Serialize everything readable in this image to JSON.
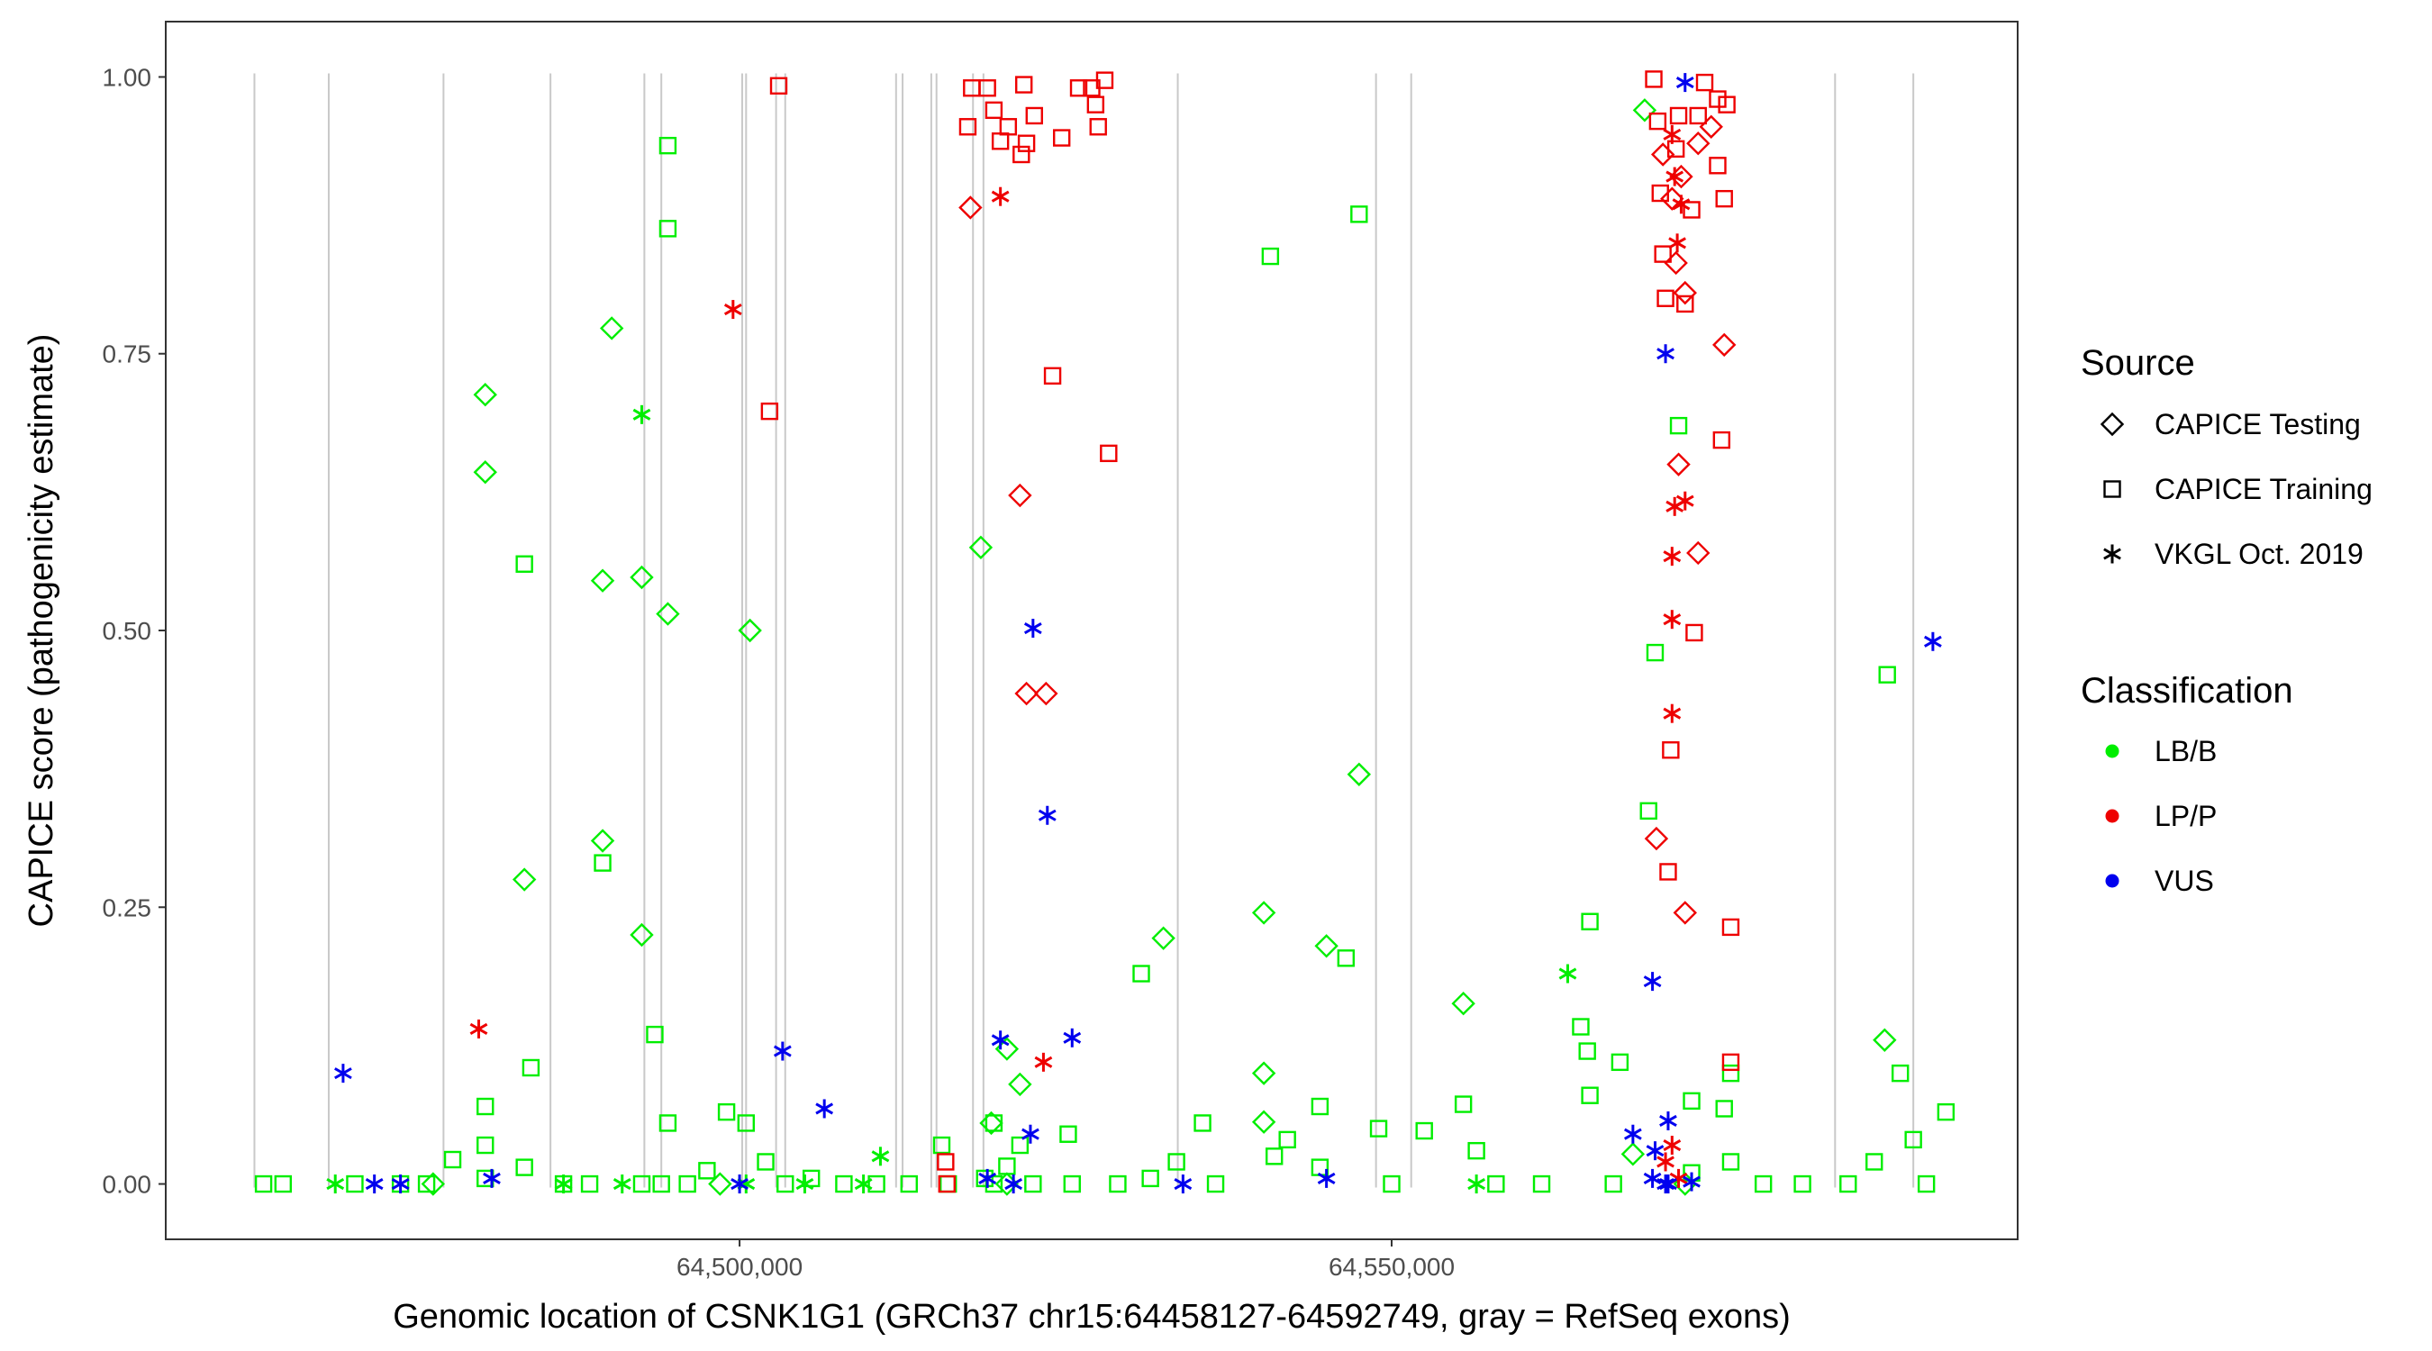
{
  "chart_data": {
    "type": "scatter",
    "xlabel": "Genomic location of CSNK1G1 (GRCh37 chr15:64458127-64592749, gray = RefSeq exons)",
    "ylabel": "CAPICE score (pathogenicity estimate)",
    "xlim": [
      64456000,
      64598000
    ],
    "ylim": [
      -0.05,
      1.05
    ],
    "x_ticks": [
      64500000,
      64550000
    ],
    "x_tick_labels": [
      "64,500,000",
      "64,550,000"
    ],
    "y_ticks": [
      0,
      0.25,
      0.5,
      0.75,
      1.0
    ],
    "y_tick_labels": [
      "0.00",
      "0.25",
      "0.50",
      "0.75",
      "1.00"
    ],
    "grid": false,
    "exon_lines": [
      64462800,
      64468500,
      64477300,
      64485500,
      64492700,
      64494000,
      64500200,
      64500500,
      64502800,
      64503500,
      64512000,
      64512500,
      64514700,
      64515100,
      64517900,
      64518700,
      64533600,
      64551500,
      64548800,
      64584000,
      64590000
    ],
    "colors": {
      "LB/B": "#00ee00",
      "LP/P": "#ee0000",
      "VUS": "#0000ee",
      "exon": "#c9c9c9"
    },
    "legend": {
      "source_title": "Source",
      "source_items": [
        {
          "label": "CAPICE Testing",
          "shape": "diamond"
        },
        {
          "label": "CAPICE Training",
          "shape": "square"
        },
        {
          "label": "VKGL Oct. 2019",
          "shape": "asterisk"
        }
      ],
      "class_title": "Classification",
      "class_items": [
        {
          "label": "LB/B",
          "color": "#00ee00"
        },
        {
          "label": "LP/P",
          "color": "#ee0000"
        },
        {
          "label": "VUS",
          "color": "#0000ee"
        }
      ],
      "placement": "right"
    },
    "series": [
      {
        "name": "LB/B · CAPICE Training",
        "shape": "square",
        "color": "#00ee00",
        "points": [
          [
            64494500,
            0.938
          ],
          [
            64494500,
            0.863
          ],
          [
            64483500,
            0.56
          ],
          [
            64489500,
            0.29
          ],
          [
            64484000,
            0.105
          ],
          [
            64480500,
            0.07
          ],
          [
            64480500,
            0.035
          ],
          [
            64493500,
            0.135
          ],
          [
            64494500,
            0.055
          ],
          [
            64470500,
            0.0
          ],
          [
            64463500,
            0.0
          ],
          [
            64465000,
            0.0
          ],
          [
            64474000,
            0.0
          ],
          [
            64476000,
            0.0
          ],
          [
            64478000,
            0.022
          ],
          [
            64480500,
            0.005
          ],
          [
            64483500,
            0.015
          ],
          [
            64486500,
            0.0
          ],
          [
            64488500,
            0.0
          ],
          [
            64492500,
            0.0
          ],
          [
            64494000,
            0.0
          ],
          [
            64496000,
            0.0
          ],
          [
            64497500,
            0.012
          ],
          [
            64499000,
            0.065
          ],
          [
            64500500,
            0.055
          ],
          [
            64502000,
            0.02
          ],
          [
            64503500,
            0.0
          ],
          [
            64505500,
            0.005
          ],
          [
            64508000,
            0.0
          ],
          [
            64510500,
            0.0
          ],
          [
            64513000,
            0.0
          ],
          [
            64516000,
            0.0
          ],
          [
            64519500,
            0.0
          ],
          [
            64522500,
            0.0
          ],
          [
            64525500,
            0.0
          ],
          [
            64529000,
            0.0
          ],
          [
            64531500,
            0.005
          ],
          [
            64533500,
            0.02
          ],
          [
            64535500,
            0.055
          ],
          [
            64536500,
            0.0
          ],
          [
            64530800,
            0.19
          ],
          [
            64540700,
            0.838
          ],
          [
            64547500,
            0.876
          ],
          [
            64546500,
            0.204
          ],
          [
            64542000,
            0.04
          ],
          [
            64544500,
            0.07
          ],
          [
            64549000,
            0.05
          ],
          [
            64552500,
            0.048
          ],
          [
            64555500,
            0.072
          ],
          [
            64556500,
            0.03
          ],
          [
            64561500,
            0.0
          ],
          [
            64564500,
            0.142
          ],
          [
            64565000,
            0.12
          ],
          [
            64565200,
            0.237
          ],
          [
            64565200,
            0.08
          ],
          [
            64567500,
            0.11
          ],
          [
            64569700,
            0.337
          ],
          [
            64570200,
            0.48
          ],
          [
            64572000,
            0.685
          ],
          [
            64573000,
            0.075
          ],
          [
            64575500,
            0.068
          ],
          [
            64576000,
            0.1
          ],
          [
            64588000,
            0.46
          ],
          [
            64589000,
            0.1
          ],
          [
            64592500,
            0.065
          ],
          [
            64590000,
            0.04
          ],
          [
            64587000,
            0.02
          ],
          [
            64576000,
            0.02
          ],
          [
            64520500,
            0.016
          ],
          [
            64525200,
            0.045
          ],
          [
            64521500,
            0.035
          ],
          [
            64518800,
            0.005
          ],
          [
            64519500,
            0.055
          ],
          [
            64515500,
            0.035
          ],
          [
            64544500,
            0.015
          ],
          [
            64541000,
            0.025
          ],
          [
            64550000,
            0.0
          ],
          [
            64558000,
            0.0
          ],
          [
            64567000,
            0.0
          ],
          [
            64573000,
            0.01
          ],
          [
            64578500,
            0.0
          ],
          [
            64581500,
            0.0
          ],
          [
            64585000,
            0.0
          ],
          [
            64591000,
            0.0
          ]
        ]
      },
      {
        "name": "LB/B · CAPICE Testing",
        "shape": "diamond",
        "color": "#00ee00",
        "points": [
          [
            64480500,
            0.713
          ],
          [
            64480500,
            0.643
          ],
          [
            64483500,
            0.275
          ],
          [
            64490200,
            0.773
          ],
          [
            64489500,
            0.545
          ],
          [
            64492500,
            0.548
          ],
          [
            64494500,
            0.515
          ],
          [
            64489500,
            0.31
          ],
          [
            64492500,
            0.225
          ],
          [
            64500800,
            0.5
          ],
          [
            64518500,
            0.575
          ],
          [
            64520500,
            0.122
          ],
          [
            64521500,
            0.09
          ],
          [
            64519300,
            0.055
          ],
          [
            64532500,
            0.222
          ],
          [
            64540200,
            0.245
          ],
          [
            64540200,
            0.1
          ],
          [
            64540200,
            0.056
          ],
          [
            64547500,
            0.37
          ],
          [
            64545000,
            0.215
          ],
          [
            64555500,
            0.163
          ],
          [
            64587800,
            0.13
          ],
          [
            64569400,
            0.97
          ],
          [
            64568500,
            0.027
          ],
          [
            64476500,
            0.0
          ],
          [
            64498500,
            0.0
          ],
          [
            64520500,
            0.0
          ],
          [
            64572500,
            0.0
          ]
        ]
      },
      {
        "name": "LB/B · VKGL Oct. 2019",
        "shape": "asterisk",
        "color": "#00ee00",
        "points": [
          [
            64492500,
            0.695
          ],
          [
            64563500,
            0.19
          ],
          [
            64510800,
            0.025
          ],
          [
            64469000,
            0.0
          ],
          [
            64486500,
            0.0
          ],
          [
            64491000,
            0.0
          ],
          [
            64500500,
            0.0
          ],
          [
            64505000,
            0.0
          ],
          [
            64509500,
            0.0
          ],
          [
            64556500,
            0.0
          ]
        ]
      },
      {
        "name": "LP/P · CAPICE Training",
        "shape": "square",
        "color": "#ee0000",
        "points": [
          [
            64503000,
            0.992
          ],
          [
            64502300,
            0.698
          ],
          [
            64517800,
            0.99
          ],
          [
            64521800,
            0.993
          ],
          [
            64517500,
            0.955
          ],
          [
            64519500,
            0.97
          ],
          [
            64520600,
            0.955
          ],
          [
            64521600,
            0.93
          ],
          [
            64522000,
            0.94
          ],
          [
            64522600,
            0.965
          ],
          [
            64524000,
            0.73
          ],
          [
            64527000,
            0.99
          ],
          [
            64527300,
            0.975
          ],
          [
            64527500,
            0.955
          ],
          [
            64528000,
            0.997
          ],
          [
            64528300,
            0.66
          ],
          [
            64570100,
            0.998
          ],
          [
            64570400,
            0.96
          ],
          [
            64570600,
            0.895
          ],
          [
            64570800,
            0.84
          ],
          [
            64571000,
            0.8
          ],
          [
            64571200,
            0.282
          ],
          [
            64571400,
            0.392
          ],
          [
            64572500,
            0.795
          ],
          [
            64573000,
            0.88
          ],
          [
            64575000,
            0.92
          ],
          [
            64575300,
            0.672
          ],
          [
            64575500,
            0.89
          ],
          [
            64575700,
            0.975
          ],
          [
            64576000,
            0.232
          ],
          [
            64576000,
            0.11
          ],
          [
            64573200,
            0.498
          ],
          [
            64571800,
            0.935
          ],
          [
            64573500,
            0.965
          ],
          [
            64574000,
            0.995
          ],
          [
            64575000,
            0.98
          ],
          [
            64572000,
            0.965
          ],
          [
            64520000,
            0.942
          ],
          [
            64519000,
            0.99
          ],
          [
            64515900,
            0.0
          ],
          [
            64515800,
            0.02
          ],
          [
            64524700,
            0.945
          ],
          [
            64526000,
            0.99
          ]
        ]
      },
      {
        "name": "LP/P · CAPICE Testing",
        "shape": "diamond",
        "color": "#ee0000",
        "points": [
          [
            64517700,
            0.882
          ],
          [
            64521500,
            0.622
          ],
          [
            64522000,
            0.443
          ],
          [
            64523500,
            0.443
          ],
          [
            64570300,
            0.312
          ],
          [
            64571800,
            0.832
          ],
          [
            64572500,
            0.805
          ],
          [
            64572000,
            0.65
          ],
          [
            64572200,
            0.91
          ],
          [
            64573500,
            0.57
          ],
          [
            64575500,
            0.758
          ],
          [
            64574500,
            0.955
          ],
          [
            64572500,
            0.245
          ],
          [
            64570800,
            0.93
          ],
          [
            64571500,
            0.89
          ],
          [
            64573500,
            0.94
          ]
        ]
      },
      {
        "name": "LP/P · VKGL Oct. 2019",
        "shape": "asterisk",
        "color": "#ee0000",
        "points": [
          [
            64480000,
            0.14
          ],
          [
            64499500,
            0.79
          ],
          [
            64520000,
            0.892
          ],
          [
            64523300,
            0.11
          ],
          [
            64571700,
            0.612
          ],
          [
            64572500,
            0.617
          ],
          [
            64571500,
            0.567
          ],
          [
            64571500,
            0.51
          ],
          [
            64571500,
            0.425
          ],
          [
            64571900,
            0.85
          ],
          [
            64571700,
            0.91
          ],
          [
            64571500,
            0.948
          ],
          [
            64572200,
            0.885
          ],
          [
            64571000,
            0.02
          ],
          [
            64571500,
            0.035
          ],
          [
            64572000,
            0.005
          ]
        ]
      },
      {
        "name": "VUS · VKGL Oct. 2019",
        "shape": "asterisk",
        "color": "#0000ee",
        "points": [
          [
            64469600,
            0.1
          ],
          [
            64472000,
            0.0
          ],
          [
            64474000,
            0.0
          ],
          [
            64481000,
            0.005
          ],
          [
            64500000,
            0.0
          ],
          [
            64503300,
            0.12
          ],
          [
            64506500,
            0.068
          ],
          [
            64520000,
            0.13
          ],
          [
            64521000,
            0.0
          ],
          [
            64522500,
            0.502
          ],
          [
            64523600,
            0.333
          ],
          [
            64525500,
            0.132
          ],
          [
            64522300,
            0.045
          ],
          [
            64519000,
            0.005
          ],
          [
            64534000,
            0.0
          ],
          [
            64545000,
            0.005
          ],
          [
            64571000,
            0.75
          ],
          [
            64570000,
            0.183
          ],
          [
            64568500,
            0.045
          ],
          [
            64570200,
            0.03
          ],
          [
            64571200,
            0.057
          ],
          [
            64570000,
            0.005
          ],
          [
            64571200,
            0.0
          ],
          [
            64572500,
            0.995
          ],
          [
            64591500,
            0.49
          ],
          [
            64571000,
            0.0
          ],
          [
            64573000,
            0.002
          ]
        ]
      }
    ]
  }
}
